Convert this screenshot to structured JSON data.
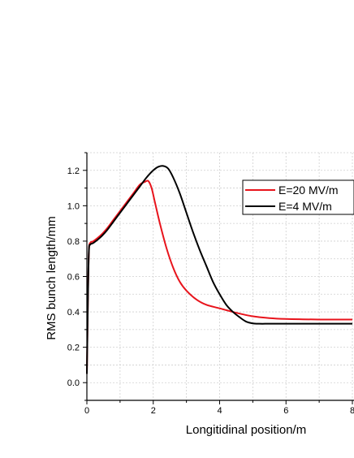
{
  "chart_data": {
    "type": "line",
    "title": "",
    "xlabel": "Longitidinal position/m",
    "ylabel": "RMS bunch length/mm",
    "xlim": [
      0,
      8
    ],
    "ylim": [
      -0.1,
      1.3
    ],
    "xticks": [
      "0",
      "2",
      "4",
      "6",
      "8"
    ],
    "yticks": [
      "0.0",
      "0.2",
      "0.4",
      "0.6",
      "0.8",
      "1.0",
      "1.2"
    ],
    "grid": true,
    "legend_position": "top-right",
    "series": [
      {
        "name": "E=20 MV/m",
        "color": "#e8141c",
        "x": [
          0.0,
          0.03,
          0.06,
          0.1,
          0.2,
          0.4,
          0.6,
          0.8,
          1.0,
          1.2,
          1.4,
          1.6,
          1.75,
          1.85,
          1.95,
          2.05,
          2.2,
          2.4,
          2.6,
          2.8,
          3.0,
          3.3,
          3.6,
          4.0,
          4.5,
          5.0,
          5.5,
          6.0,
          6.5,
          7.0,
          7.5,
          8.0
        ],
        "y": [
          0.05,
          0.45,
          0.74,
          0.79,
          0.8,
          0.83,
          0.87,
          0.92,
          0.97,
          1.02,
          1.07,
          1.12,
          1.135,
          1.14,
          1.1,
          1.02,
          0.9,
          0.76,
          0.65,
          0.57,
          0.52,
          0.47,
          0.44,
          0.42,
          0.395,
          0.375,
          0.365,
          0.36,
          0.358,
          0.357,
          0.357,
          0.357
        ]
      },
      {
        "name": "E=4 MV/m",
        "color": "#000000",
        "x": [
          0.0,
          0.03,
          0.06,
          0.1,
          0.2,
          0.4,
          0.6,
          0.8,
          1.0,
          1.2,
          1.4,
          1.6,
          1.8,
          2.0,
          2.15,
          2.3,
          2.45,
          2.6,
          2.8,
          3.0,
          3.2,
          3.4,
          3.6,
          3.8,
          4.0,
          4.2,
          4.4,
          4.6,
          4.8,
          5.0,
          5.2,
          5.5,
          6.0,
          6.5,
          7.0,
          7.5,
          8.0
        ],
        "y": [
          0.05,
          0.45,
          0.74,
          0.78,
          0.79,
          0.82,
          0.86,
          0.91,
          0.96,
          1.01,
          1.06,
          1.11,
          1.16,
          1.2,
          1.22,
          1.225,
          1.21,
          1.16,
          1.07,
          0.96,
          0.85,
          0.75,
          0.66,
          0.57,
          0.5,
          0.44,
          0.4,
          0.37,
          0.345,
          0.335,
          0.333,
          0.333,
          0.333,
          0.333,
          0.333,
          0.333,
          0.333
        ]
      }
    ]
  }
}
